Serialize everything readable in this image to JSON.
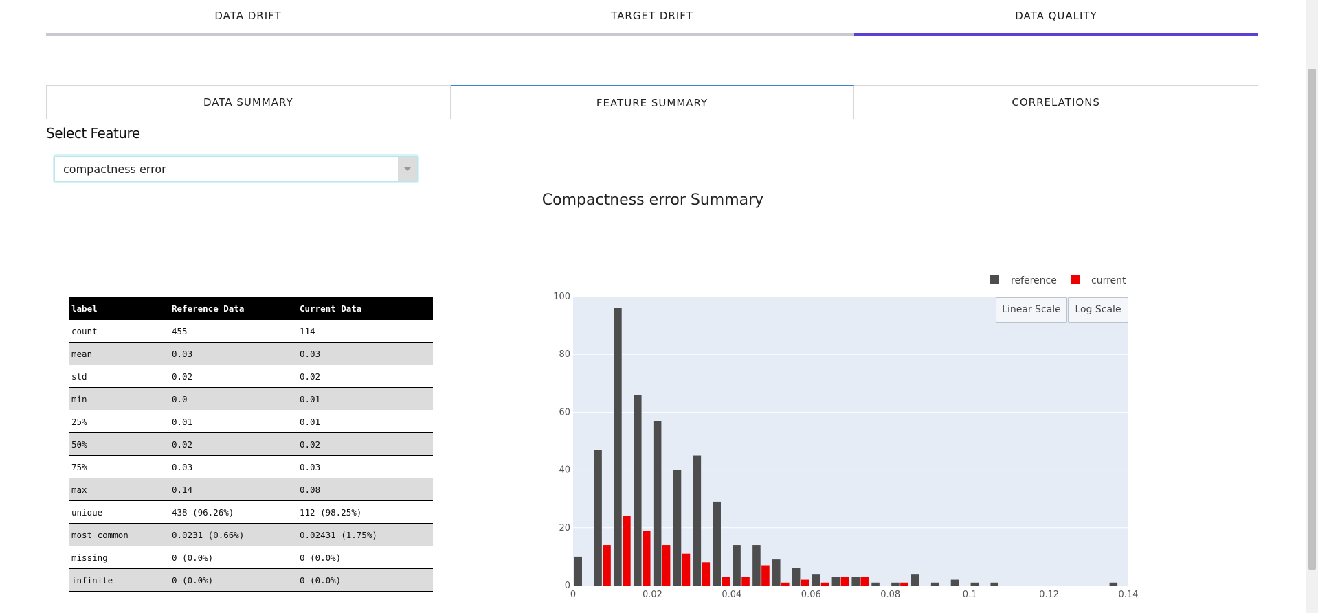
{
  "top_tabs": [
    {
      "label": "DATA DRIFT",
      "active": false
    },
    {
      "label": "TARGET DRIFT",
      "active": false
    },
    {
      "label": "DATA QUALITY",
      "active": true
    }
  ],
  "sub_tabs": [
    {
      "label": "DATA SUMMARY",
      "active": false
    },
    {
      "label": "FEATURE SUMMARY",
      "active": true
    },
    {
      "label": "CORRELATIONS",
      "active": false
    }
  ],
  "feature_select": {
    "label": "Select Feature",
    "value": "compactness error"
  },
  "summary_title": "Compactness error Summary",
  "stats_table": {
    "headers": [
      "label",
      "Reference Data",
      "Current Data"
    ],
    "rows": [
      [
        "count",
        "455",
        "114"
      ],
      [
        "mean",
        "0.03",
        "0.03"
      ],
      [
        "std",
        "0.02",
        "0.02"
      ],
      [
        "min",
        "0.0",
        "0.01"
      ],
      [
        "25%",
        "0.01",
        "0.01"
      ],
      [
        "50%",
        "0.02",
        "0.02"
      ],
      [
        "75%",
        "0.03",
        "0.03"
      ],
      [
        "max",
        "0.14",
        "0.08"
      ],
      [
        "unique",
        "438 (96.26%)",
        "112 (98.25%)"
      ],
      [
        "most common",
        "0.0231 (0.66%)",
        "0.02431 (1.75%)"
      ],
      [
        "missing",
        "0 (0.0%)",
        "0 (0.0%)"
      ],
      [
        "infinite",
        "0 (0.0%)",
        "0 (0.0%)"
      ]
    ]
  },
  "scale_buttons": {
    "linear": "Linear Scale",
    "log": "Log Scale"
  },
  "colors": {
    "reference": "#4d4d4d",
    "current": "#ee0000",
    "plot_bg": "#e5ecf6",
    "active_tab": "#5b3fd6"
  },
  "chart_data": {
    "type": "bar",
    "title": "",
    "xlabel": "",
    "ylabel": "",
    "legend_position": "top-right",
    "grid": true,
    "xlim": [
      0,
      0.14
    ],
    "ylim": [
      0,
      100
    ],
    "x_ticks": [
      0,
      0.02,
      0.04,
      0.06,
      0.08,
      0.1,
      0.12,
      0.14
    ],
    "x_tick_labels": [
      "0",
      "0.02",
      "0.04",
      "0.06",
      "0.08",
      "0.1",
      "0.12",
      "0.14"
    ],
    "y_ticks": [
      0,
      20,
      40,
      60,
      80,
      100
    ],
    "y_tick_labels": [
      "0",
      "20",
      "40",
      "60",
      "80",
      "100"
    ],
    "bin_width": 0.005,
    "x": [
      0.0025,
      0.0075,
      0.0125,
      0.0175,
      0.0225,
      0.0275,
      0.0325,
      0.0375,
      0.0425,
      0.0475,
      0.0525,
      0.0575,
      0.0625,
      0.0675,
      0.0725,
      0.0775,
      0.0825,
      0.0875,
      0.0925,
      0.0975,
      0.1025,
      0.1075,
      0.1125,
      0.1175,
      0.1225,
      0.1275,
      0.1325,
      0.1375
    ],
    "series": [
      {
        "name": "reference",
        "values": [
          10,
          47,
          96,
          66,
          57,
          40,
          45,
          29,
          14,
          14,
          9,
          6,
          4,
          3,
          3,
          1,
          1,
          4,
          1,
          2,
          1,
          1,
          0,
          0,
          0,
          0,
          0,
          1
        ]
      },
      {
        "name": "current",
        "values": [
          0,
          14,
          24,
          19,
          14,
          11,
          8,
          3,
          3,
          7,
          1,
          2,
          1,
          3,
          3,
          0,
          1,
          0,
          0,
          0,
          0,
          0,
          0,
          0,
          0,
          0,
          0,
          0
        ]
      }
    ]
  }
}
